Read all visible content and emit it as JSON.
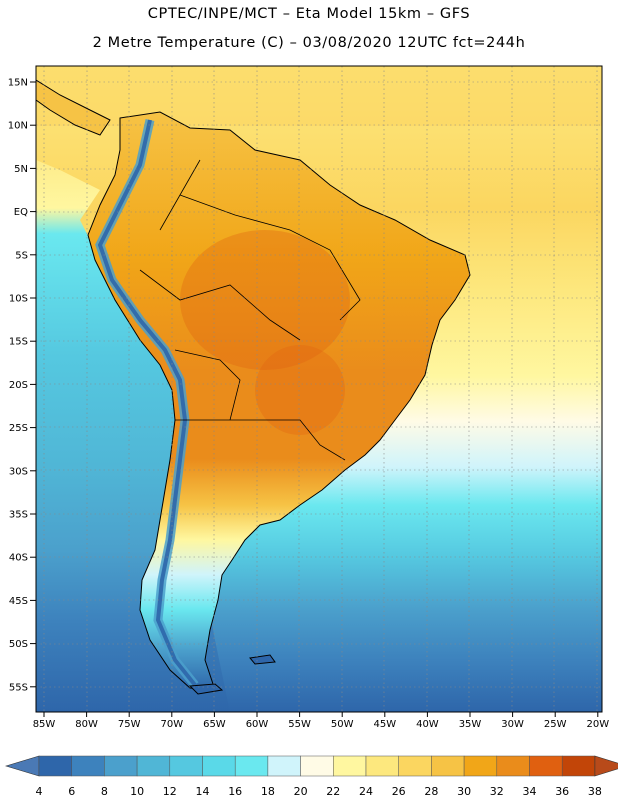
{
  "header": {
    "title_line1": "CPTEC/INPE/MCT  –   Eta Model 15km  –  GFS",
    "title_line2": "2 Metre Temperature (C) – 03/08/2020 12UTC fct=244h"
  },
  "axes": {
    "lat_labels": [
      "15N",
      "10N",
      "5N",
      "EQ",
      "5S",
      "10S",
      "15S",
      "20S",
      "25S",
      "30S",
      "35S",
      "40S",
      "45S",
      "50S",
      "55S"
    ],
    "lon_labels": [
      "85W",
      "80W",
      "75W",
      "70W",
      "65W",
      "60W",
      "55W",
      "50W",
      "45W",
      "40W",
      "35W",
      "30W",
      "25W",
      "20W"
    ]
  },
  "colorbar": {
    "ticks": [
      "4",
      "6",
      "8",
      "10",
      "12",
      "14",
      "16",
      "18",
      "20",
      "22",
      "24",
      "26",
      "28",
      "30",
      "32",
      "34",
      "36",
      "38"
    ],
    "low_color": "#4a79b5",
    "high_color": "#b84a1a",
    "colors": [
      "#2e66aa",
      "#3d82bd",
      "#4ba0cc",
      "#50b6d6",
      "#55c8e0",
      "#5ad9e8",
      "#6ae8ef",
      "#d0f4fb",
      "#fffbe6",
      "#fff7a0",
      "#fde87e",
      "#fbd660",
      "#f6c345",
      "#f1a618",
      "#ea8c1b",
      "#e06010",
      "#c24508"
    ]
  },
  "map": {
    "ocean_colors": {
      "tropical": "#fde87e",
      "warm": "#fbd660",
      "mid": "#55c8e0",
      "cool": "#3d82bd",
      "cold": "#2e66aa"
    },
    "land_colors": {
      "hot": "#ea8c1b",
      "warm": "#f6c345",
      "andes": "#3d82bd"
    }
  }
}
